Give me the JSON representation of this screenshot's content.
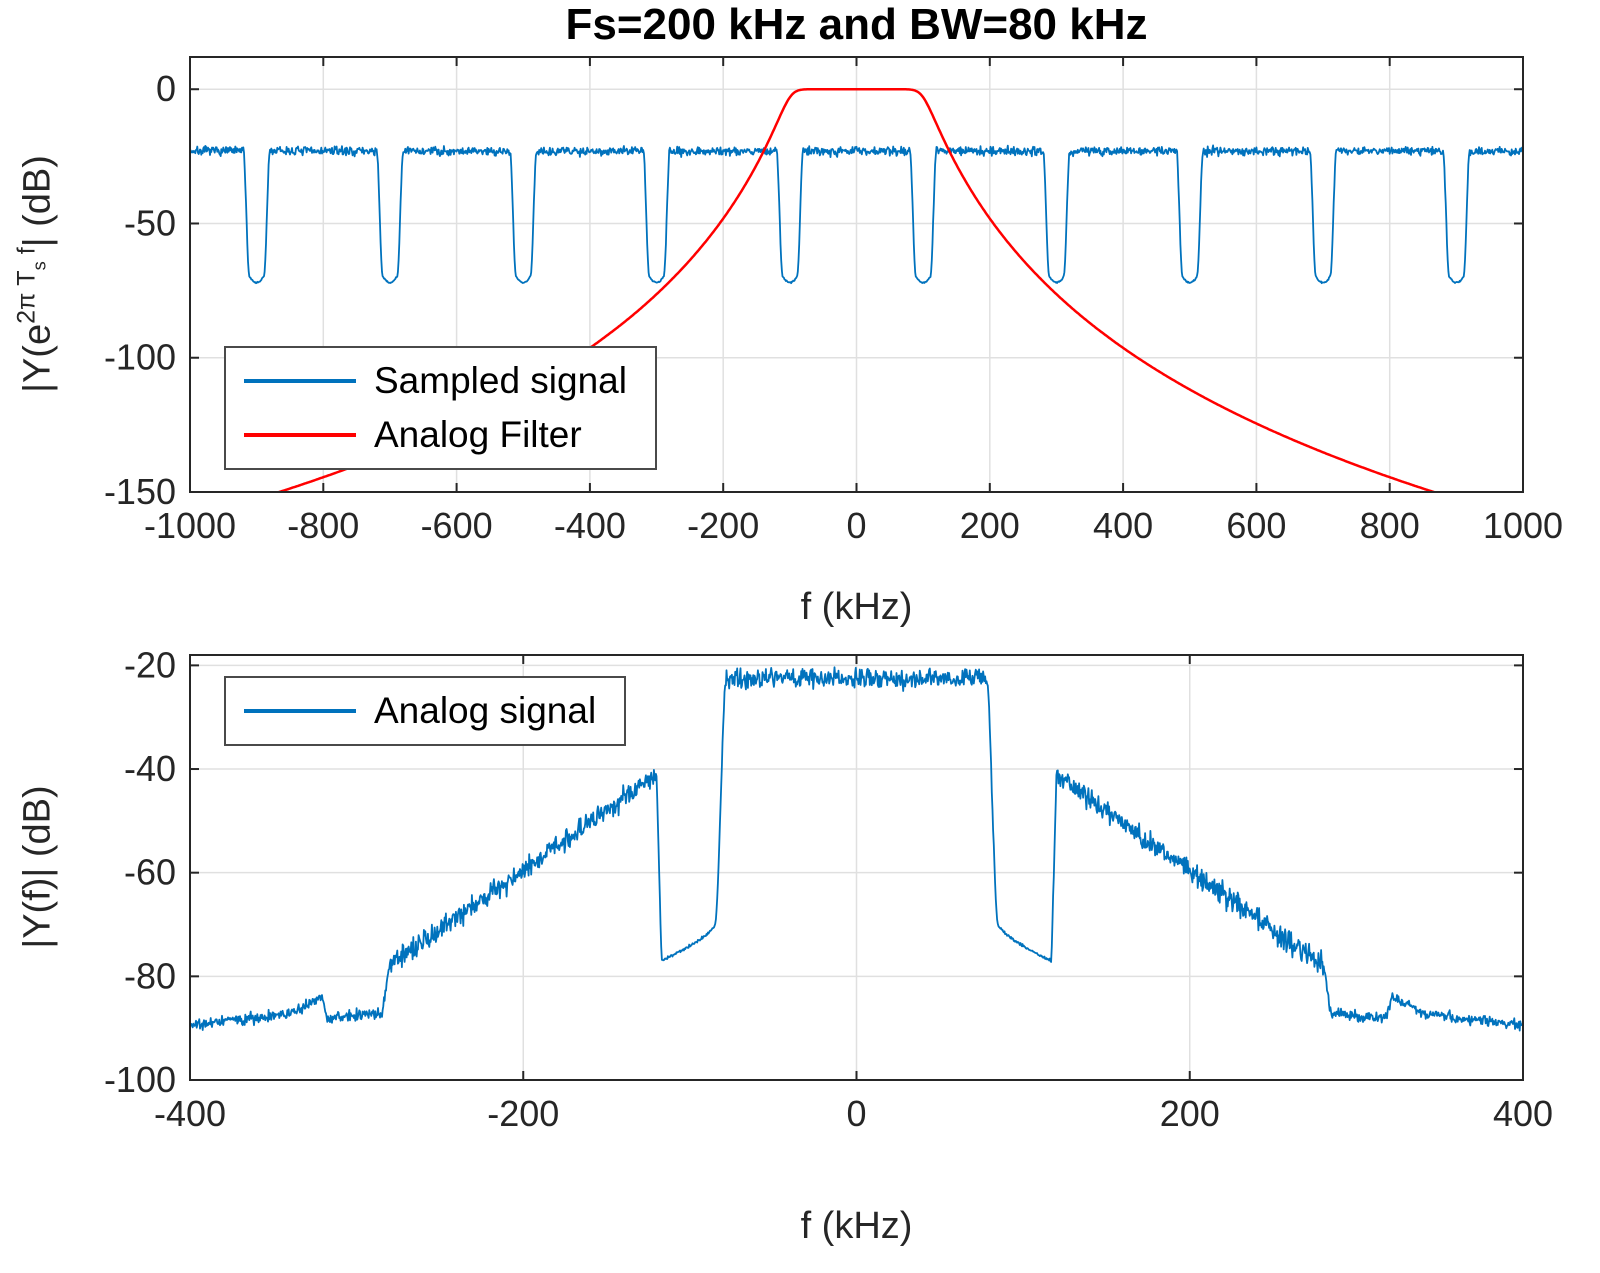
{
  "title": "Fs=200 kHz and BW=80 kHz",
  "labels": {
    "top_xlabel": "f (kHz)",
    "bottom_xlabel": "f (kHz)",
    "bottom_ylabel": "|Y(f)| (dB)",
    "top_ylabel_parts": [
      {
        "t": "|Y(e",
        "c": ""
      },
      {
        "t": "2π T",
        "c": "sup"
      },
      {
        "t": "s",
        "c": "supsub"
      },
      {
        "t": " f",
        "c": "sup"
      },
      {
        "t": "| (dB)",
        "c": ""
      }
    ]
  },
  "colors": {
    "signal_blue": "#0072BD",
    "filter_red": "#FF0000",
    "grid": "#E0E0E0",
    "axis": "#262626",
    "tick_text": "#262626",
    "title_text": "#000000"
  },
  "chart_data": [
    {
      "id": "top",
      "type": "line",
      "title": "Fs=200 kHz and BW=80 kHz",
      "xlabel": "f (kHz)",
      "ylabel": "|Y(e^{2π T_s f}| (dB)",
      "xlim": [
        -1000,
        1000
      ],
      "ylim": [
        -150,
        12
      ],
      "xticks": [
        -1000,
        -800,
        -600,
        -400,
        -200,
        0,
        200,
        400,
        600,
        800,
        1000
      ],
      "yticks": [
        0,
        -50,
        -100,
        -150
      ],
      "grid": true,
      "legend_position": "lower left",
      "series": [
        {
          "name": "Sampled signal",
          "color": "#0072BD",
          "width": 1.8,
          "generator": "sampled_spectrum",
          "params": {
            "range_khz": [
              -1000,
              1000
            ],
            "step_khz": 1,
            "base_level_db": -23,
            "noise_sd_db": 0.8,
            "notch_centers_khz": [
              -900,
              -700,
              -500,
              -300,
              -100,
              100,
              300,
              500,
              700,
              900
            ],
            "notch_depth_db": -72,
            "notch_bottom_halfwidth_khz": 11,
            "notch_halfwidth_khz": 20
          }
        },
        {
          "name": "Analog Filter",
          "color": "#FF0000",
          "width": 2.5,
          "generator": "butterworth_filter",
          "params": {
            "range_khz": [
              -1000,
              1000
            ],
            "step_khz": 2,
            "cutoff_khz": 100,
            "order": 8,
            "passband_db": 0,
            "reaches_db": -150
          }
        }
      ]
    },
    {
      "id": "bottom",
      "type": "line",
      "xlabel": "f (kHz)",
      "ylabel": "|Y(f)| (dB)",
      "xlim": [
        -400,
        400
      ],
      "ylim": [
        -100,
        -18
      ],
      "xticks": [
        -400,
        -200,
        0,
        200,
        400
      ],
      "yticks": [
        -20,
        -40,
        -60,
        -80,
        -100
      ],
      "grid": true,
      "legend_position": "upper left",
      "series": [
        {
          "name": "Analog signal",
          "color": "#0072BD",
          "width": 1.8,
          "generator": "analog_spectrum",
          "params": {
            "range_khz": [
              -400,
              400
            ],
            "step_khz": 0.4,
            "noise_sd_db": 0.9,
            "passband": {
              "edge_khz": 78,
              "level_db": -22.5
            },
            "transition": {
              "end_khz": 85,
              "level_db": -70
            },
            "smooth_notch": {
              "end_khz": 117,
              "drop_db": 7,
              "exponent": 0.7
            },
            "jump": {
              "end_khz": 120,
              "level_db": -41
            },
            "ramp": {
              "end_khz": 280,
              "level_db": -78
            },
            "step_down": {
              "end_khz": 285,
              "level_db": -87
            },
            "shelf": {
              "end_khz": 318,
              "level_db": -87.3,
              "slope_db_per_khz": -0.02
            },
            "bump": {
              "rise_end_khz": 321,
              "peak_db": -84,
              "end_khz": 340,
              "end_db": -87.2
            },
            "tail": {
              "end_khz": 400,
              "end_db": -89.4
            }
          }
        }
      ]
    }
  ]
}
